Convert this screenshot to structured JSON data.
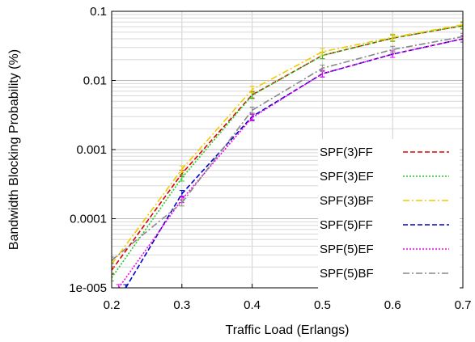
{
  "chart_data": {
    "type": "line",
    "xlabel": "Traffic Load (Erlangs)",
    "ylabel": "Bandwidth Blocking Probability (%)",
    "xlim": [
      0.2,
      0.7
    ],
    "ylim": [
      1e-05,
      0.1
    ],
    "yscale": "log",
    "grid": true,
    "legend_position": "right",
    "x_ticks": [
      "0.2",
      "0.3",
      "0.4",
      "0.5",
      "0.6",
      "0.7"
    ],
    "y_ticks": [
      "1e-005",
      "0.0001",
      "0.001",
      "0.01",
      "0.1"
    ],
    "series": [
      {
        "name": "SPF(3)FF",
        "color": "#dd0000",
        "dash": "dashed",
        "x": [
          0.2,
          0.3,
          0.4,
          0.5,
          0.6,
          0.7
        ],
        "y": [
          1.8e-05,
          0.00045,
          0.0062,
          0.023,
          0.041,
          0.062
        ]
      },
      {
        "name": "SPF(3)EF",
        "color": "#22cc22",
        "dash": "dotted",
        "x": [
          0.2,
          0.3,
          0.4,
          0.5,
          0.6,
          0.7
        ],
        "y": [
          1.4e-05,
          0.00039,
          0.0061,
          0.023,
          0.041,
          0.062
        ]
      },
      {
        "name": "SPF(3)BF",
        "color": "#eecc00",
        "dash": "dashdot",
        "x": [
          0.2,
          0.3,
          0.4,
          0.5,
          0.6,
          0.7
        ],
        "y": [
          2.2e-05,
          0.00052,
          0.0074,
          0.026,
          0.042,
          0.064
        ]
      },
      {
        "name": "SPF(5)FF",
        "color": "#0000cc",
        "dash": "dashed",
        "x": [
          0.22,
          0.3,
          0.4,
          0.5,
          0.6,
          0.7
        ],
        "y": [
          1e-05,
          0.00023,
          0.003,
          0.0125,
          0.024,
          0.04
        ]
      },
      {
        "name": "SPF(5)EF",
        "color": "#ee00ee",
        "dash": "dotted",
        "x": [
          0.21,
          0.3,
          0.4,
          0.5,
          0.6,
          0.7
        ],
        "y": [
          1e-05,
          0.00019,
          0.0029,
          0.0125,
          0.024,
          0.04
        ]
      },
      {
        "name": "SPF(5)BF",
        "color": "#888888",
        "dash": "dashdot",
        "x": [
          0.2,
          0.3,
          0.4,
          0.5,
          0.6,
          0.7
        ],
        "y": [
          2.5e-05,
          0.00017,
          0.0037,
          0.015,
          0.028,
          0.043
        ]
      }
    ]
  }
}
